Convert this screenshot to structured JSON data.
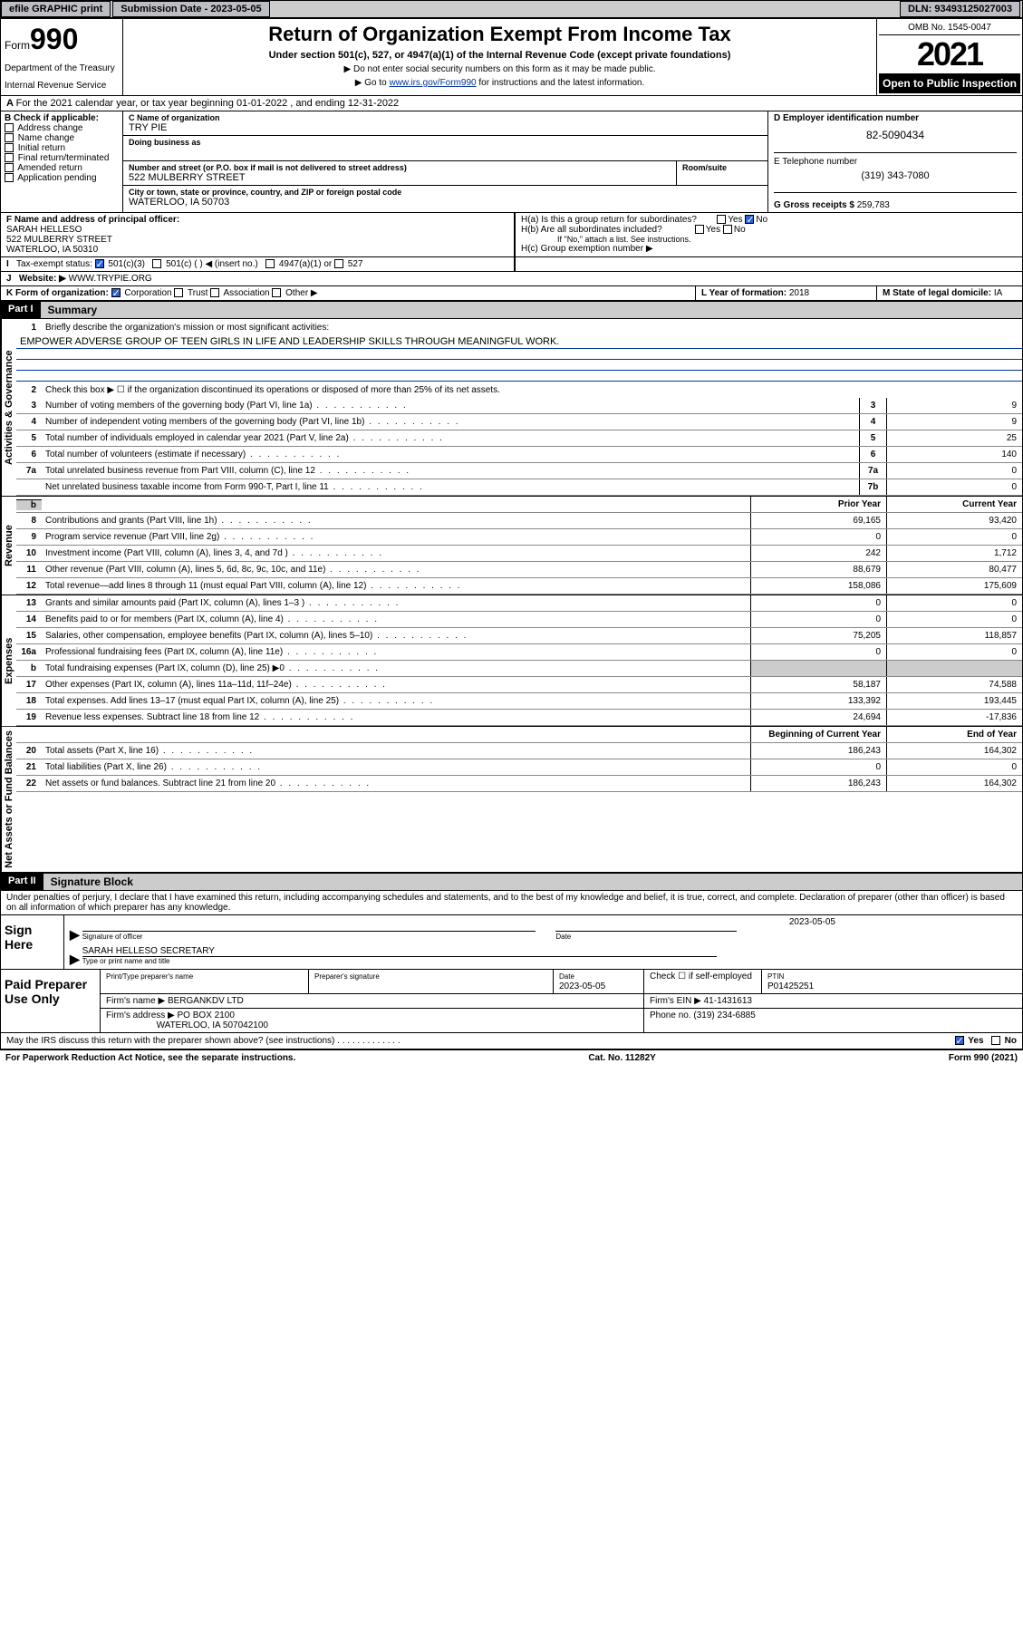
{
  "topbar": {
    "efile": "efile GRAPHIC print",
    "submission_label": "Submission Date - 2023-05-05",
    "dln_label": "DLN: 93493125027003"
  },
  "header": {
    "form_prefix": "Form",
    "form_num": "990",
    "dept": "Department of the Treasury",
    "irs": "Internal Revenue Service",
    "title": "Return of Organization Exempt From Income Tax",
    "subtitle": "Under section 501(c), 527, or 4947(a)(1) of the Internal Revenue Code (except private foundations)",
    "note1": "▶ Do not enter social security numbers on this form as it may be made public.",
    "note2_pre": "▶ Go to ",
    "note2_link": "www.irs.gov/Form990",
    "note2_post": " for instructions and the latest information.",
    "omb": "OMB No. 1545-0047",
    "year": "2021",
    "inspection": "Open to Public Inspection"
  },
  "row_a": "For the 2021 calendar year, or tax year beginning 01-01-2022   , and ending 12-31-2022",
  "col_b": {
    "title": "B Check if applicable:",
    "items": [
      "Address change",
      "Name change",
      "Initial return",
      "Final return/terminated",
      "Amended return",
      "Application pending"
    ]
  },
  "col_c": {
    "name_label": "C Name of organization",
    "name_val": "TRY PIE",
    "dba_label": "Doing business as",
    "addr_label": "Number and street (or P.O. box if mail is not delivered to street address)",
    "room_label": "Room/suite",
    "addr_val": "522 MULBERRY STREET",
    "city_label": "City or town, state or province, country, and ZIP or foreign postal code",
    "city_val": "WATERLOO, IA  50703"
  },
  "col_d": {
    "ein_label": "D Employer identification number",
    "ein_val": "82-5090434",
    "tel_label": "E Telephone number",
    "tel_val": "(319) 343-7080",
    "gross_label": "G Gross receipts $",
    "gross_val": "259,783"
  },
  "row_f": {
    "label": "F  Name and address of principal officer:",
    "name": "SARAH HELLESO",
    "addr1": "522 MULBERRY STREET",
    "addr2": "WATERLOO, IA  50310"
  },
  "row_h": {
    "ha": "H(a)  Is this a group return for subordinates?",
    "hb": "H(b)  Are all subordinates included?",
    "hb_note": "If \"No,\" attach a list. See instructions.",
    "hc": "H(c)  Group exemption number ▶",
    "yes": "Yes",
    "no": "No"
  },
  "row_i": {
    "label": "Tax-exempt status:",
    "opt1": "501(c)(3)",
    "opt2": "501(c) (  ) ◀ (insert no.)",
    "opt3": "4947(a)(1) or",
    "opt4": "527"
  },
  "row_j": {
    "label": "Website: ▶",
    "val": "WWW.TRYPIE.ORG"
  },
  "row_k": {
    "label": "K Form of organization:",
    "opts": [
      "Corporation",
      "Trust",
      "Association",
      "Other ▶"
    ]
  },
  "row_l": {
    "label": "L Year of formation:",
    "val": "2018"
  },
  "row_m": {
    "label": "M State of legal domicile:",
    "val": "IA"
  },
  "part1": {
    "header": "Part I",
    "title": "Summary",
    "line1_label": "Briefly describe the organization's mission or most significant activities:",
    "line1_val": "EMPOWER ADVERSE GROUP OF TEEN GIRLS IN LIFE AND LEADERSHIP SKILLS THROUGH MEANINGFUL WORK.",
    "line2": "Check this box ▶ ☐  if the organization discontinued its operations or disposed of more than 25% of its net assets.",
    "governance_label": "Activities & Governance",
    "revenue_label": "Revenue",
    "expenses_label": "Expenses",
    "netassets_label": "Net Assets or Fund Balances",
    "lines_gov": [
      {
        "n": "3",
        "t": "Number of voting members of the governing body (Part VI, line 1a)",
        "b": "3",
        "v": "9"
      },
      {
        "n": "4",
        "t": "Number of independent voting members of the governing body (Part VI, line 1b)",
        "b": "4",
        "v": "9"
      },
      {
        "n": "5",
        "t": "Total number of individuals employed in calendar year 2021 (Part V, line 2a)",
        "b": "5",
        "v": "25"
      },
      {
        "n": "6",
        "t": "Total number of volunteers (estimate if necessary)",
        "b": "6",
        "v": "140"
      },
      {
        "n": "7a",
        "t": "Total unrelated business revenue from Part VIII, column (C), line 12",
        "b": "7a",
        "v": "0"
      },
      {
        "n": "",
        "t": "Net unrelated business taxable income from Form 990-T, Part I, line 11",
        "b": "7b",
        "v": "0"
      }
    ],
    "prior_year": "Prior Year",
    "current_year": "Current Year",
    "lines_rev": [
      {
        "n": "8",
        "t": "Contributions and grants (Part VIII, line 1h)",
        "p": "69,165",
        "c": "93,420"
      },
      {
        "n": "9",
        "t": "Program service revenue (Part VIII, line 2g)",
        "p": "0",
        "c": "0"
      },
      {
        "n": "10",
        "t": "Investment income (Part VIII, column (A), lines 3, 4, and 7d )",
        "p": "242",
        "c": "1,712"
      },
      {
        "n": "11",
        "t": "Other revenue (Part VIII, column (A), lines 5, 6d, 8c, 9c, 10c, and 11e)",
        "p": "88,679",
        "c": "80,477"
      },
      {
        "n": "12",
        "t": "Total revenue—add lines 8 through 11 (must equal Part VIII, column (A), line 12)",
        "p": "158,086",
        "c": "175,609"
      }
    ],
    "lines_exp": [
      {
        "n": "13",
        "t": "Grants and similar amounts paid (Part IX, column (A), lines 1–3 )",
        "p": "0",
        "c": "0"
      },
      {
        "n": "14",
        "t": "Benefits paid to or for members (Part IX, column (A), line 4)",
        "p": "0",
        "c": "0"
      },
      {
        "n": "15",
        "t": "Salaries, other compensation, employee benefits (Part IX, column (A), lines 5–10)",
        "p": "75,205",
        "c": "118,857"
      },
      {
        "n": "16a",
        "t": "Professional fundraising fees (Part IX, column (A), line 11e)",
        "p": "0",
        "c": "0"
      },
      {
        "n": "b",
        "t": "Total fundraising expenses (Part IX, column (D), line 25) ▶0",
        "p": "",
        "c": "",
        "gray": true
      },
      {
        "n": "17",
        "t": "Other expenses (Part IX, column (A), lines 11a–11d, 11f–24e)",
        "p": "58,187",
        "c": "74,588"
      },
      {
        "n": "18",
        "t": "Total expenses. Add lines 13–17 (must equal Part IX, column (A), line 25)",
        "p": "133,392",
        "c": "193,445"
      },
      {
        "n": "19",
        "t": "Revenue less expenses. Subtract line 18 from line 12",
        "p": "24,694",
        "c": "-17,836"
      }
    ],
    "begin_year": "Beginning of Current Year",
    "end_year": "End of Year",
    "lines_net": [
      {
        "n": "20",
        "t": "Total assets (Part X, line 16)",
        "p": "186,243",
        "c": "164,302"
      },
      {
        "n": "21",
        "t": "Total liabilities (Part X, line 26)",
        "p": "0",
        "c": "0"
      },
      {
        "n": "22",
        "t": "Net assets or fund balances. Subtract line 21 from line 20",
        "p": "186,243",
        "c": "164,302"
      }
    ]
  },
  "part2": {
    "header": "Part II",
    "title": "Signature Block",
    "decl": "Under penalties of perjury, I declare that I have examined this return, including accompanying schedules and statements, and to the best of my knowledge and belief, it is true, correct, and complete. Declaration of preparer (other than officer) is based on all information of which preparer has any knowledge.",
    "sign_here": "Sign Here",
    "sig_officer": "Signature of officer",
    "sig_date": "Date",
    "sig_date_val": "2023-05-05",
    "sig_name": "SARAH HELLESO  SECRETARY",
    "sig_name_label": "Type or print name and title",
    "paid_prep": "Paid Preparer Use Only",
    "prep_name_label": "Print/Type preparer's name",
    "prep_sig_label": "Preparer's signature",
    "prep_date_label": "Date",
    "prep_date_val": "2023-05-05",
    "prep_check": "Check ☐ if self-employed",
    "ptin_label": "PTIN",
    "ptin_val": "P01425251",
    "firm_name_label": "Firm's name    ▶",
    "firm_name_val": "BERGANKDV LTD",
    "firm_ein_label": "Firm's EIN ▶",
    "firm_ein_val": "41-1431613",
    "firm_addr_label": "Firm's address ▶",
    "firm_addr_val": "PO BOX 2100",
    "firm_addr_val2": "WATERLOO, IA  507042100",
    "phone_label": "Phone no.",
    "phone_val": "(319) 234-6885",
    "discuss": "May the IRS discuss this return with the preparer shown above? (see instructions)"
  },
  "footer": {
    "left": "For Paperwork Reduction Act Notice, see the separate instructions.",
    "mid": "Cat. No. 11282Y",
    "right": "Form 990 (2021)"
  }
}
